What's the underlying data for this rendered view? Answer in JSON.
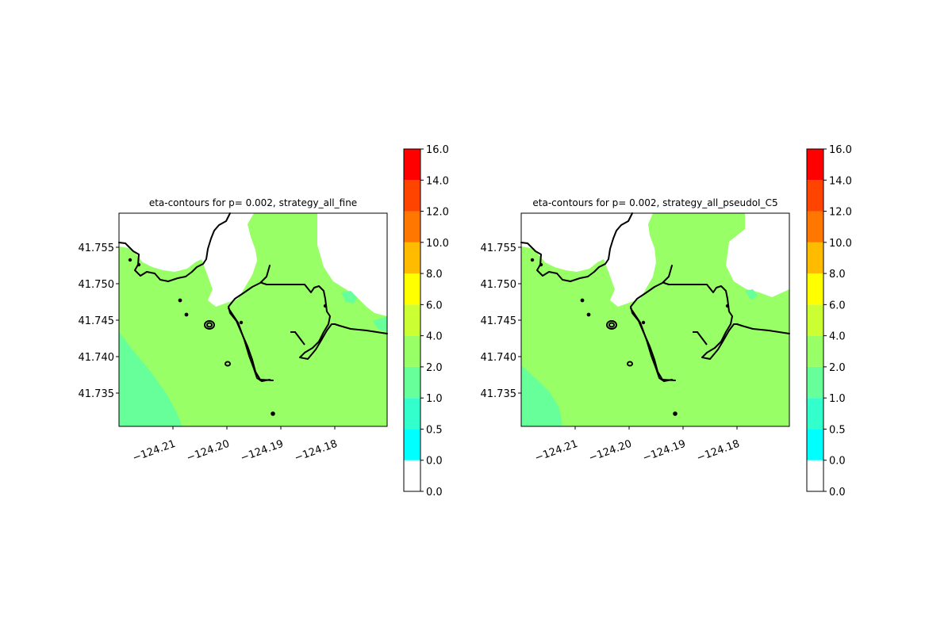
{
  "panels": [
    {
      "title": "eta-contours for p= 0.002, strategy_all_fine",
      "variant": "fine"
    },
    {
      "title": "eta-contours for p= 0.002, strategy_all_pseudoI_C5",
      "variant": "pseudo"
    }
  ],
  "map": {
    "x_ticks": [
      "−124.21",
      "−124.20",
      "−124.19",
      "−124.18"
    ],
    "y_ticks": [
      "41.755",
      "41.750",
      "41.745",
      "41.740",
      "41.735"
    ],
    "x_range": [
      -124.22,
      -124.17
    ],
    "y_range": [
      41.7305,
      41.7595
    ]
  },
  "colorbar": {
    "labels": [
      "0.0",
      "0.0",
      "0.5",
      "1.0",
      "2.0",
      "4.0",
      "6.0",
      "8.0",
      "10.0",
      "12.0",
      "14.0",
      "16.0"
    ],
    "colors": [
      "#ffffff",
      "#00ffff",
      "#33ffcc",
      "#66ff99",
      "#99ff66",
      "#ccff33",
      "#ffff00",
      "#ffbb00",
      "#ff7700",
      "#ff4400",
      "#ff0000"
    ]
  }
}
